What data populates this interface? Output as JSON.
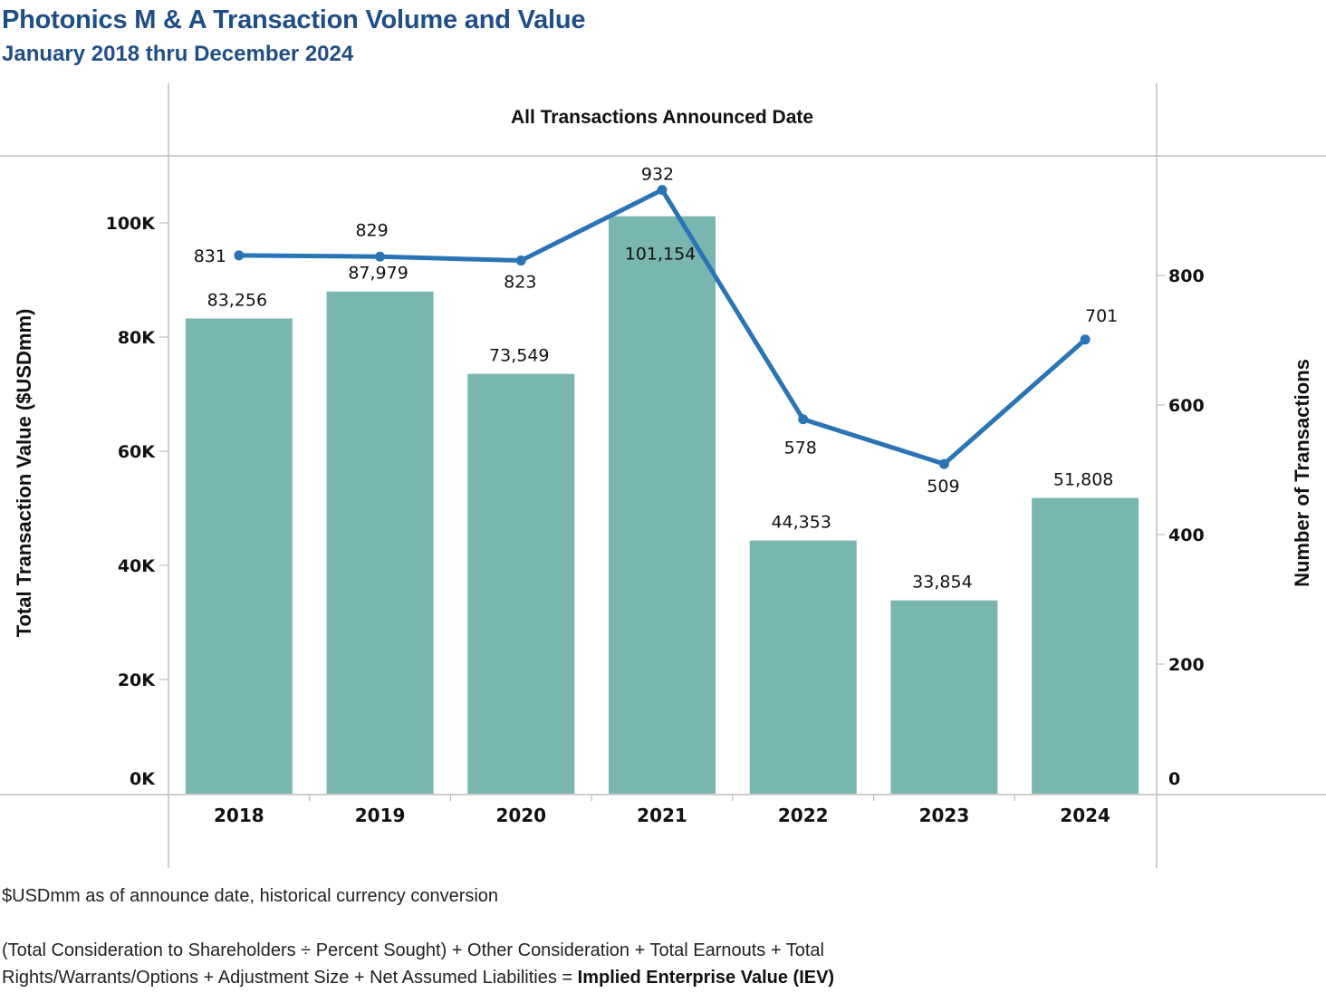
{
  "header": {
    "title": "Photonics M & A Transaction Volume and Value",
    "subtitle": "January 2018 thru December 2024",
    "column_header": "All Transactions Announced Date"
  },
  "footnotes": {
    "currency_note": "$USDmm as of announce date, historical currency conversion",
    "formula_line1": "(Total Consideration to Shareholders ÷ Percent Sought) + Other Consideration + Total Earnouts + Total",
    "formula_line2_prefix": "Rights/Warrants/Options + Adjustment Size + Net Assumed Liabilities = ",
    "formula_line2_bold": "Implied Enterprise Value (IEV)"
  },
  "colors": {
    "bar": "#79b6b0",
    "line": "#2a74b5",
    "title": "#1f4e86",
    "grid": "#bdbdbd"
  },
  "chart_data": {
    "type": "bar",
    "title": "Photonics M & A Transaction Volume and Value",
    "subtitle": "January 2018 thru December 2024",
    "xlabel": "All Transactions Announced Date",
    "categories": [
      "2018",
      "2019",
      "2020",
      "2021",
      "2022",
      "2023",
      "2024"
    ],
    "series": [
      {
        "name": "Total Transaction Value ($USDmm)",
        "type": "bar",
        "axis": "left",
        "values": [
          83256,
          87979,
          73549,
          101154,
          44353,
          33854,
          51808
        ],
        "labels": [
          "83,256",
          "87,979",
          "73,549",
          "101,154",
          "44,353",
          "33,854",
          "51,808"
        ]
      },
      {
        "name": "Number of Transactions",
        "type": "line",
        "axis": "right",
        "values": [
          831,
          829,
          823,
          932,
          578,
          509,
          701
        ],
        "labels": [
          "831",
          "829",
          "823",
          "932",
          "578",
          "509",
          "701"
        ]
      }
    ],
    "y_left": {
      "label": "Total Transaction Value ($USDmm)",
      "range": [
        0,
        110000
      ],
      "ticks": [
        0,
        20000,
        40000,
        60000,
        80000,
        100000
      ],
      "tick_labels": [
        "0K",
        "20K",
        "40K",
        "60K",
        "80K",
        "100K"
      ]
    },
    "y_right": {
      "label": "Number of Transactions",
      "range": [
        0,
        985
      ],
      "ticks": [
        0,
        200,
        400,
        600,
        800
      ],
      "tick_labels": [
        "0",
        "200",
        "400",
        "600",
        "800"
      ]
    },
    "grid": false,
    "legend": "none"
  }
}
